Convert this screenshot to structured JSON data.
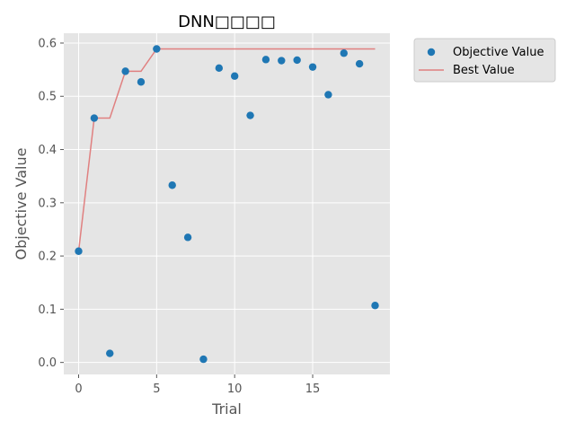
{
  "chart_data": {
    "type": "scatter",
    "title": "DNN□□□□",
    "xlabel": "Trial",
    "ylabel": "Objective Value",
    "xlim": [
      -0.95,
      19.95
    ],
    "ylim": [
      -0.0225,
      0.6185
    ],
    "xticks": [
      0,
      5,
      10,
      15
    ],
    "yticks": [
      0.0,
      0.1,
      0.2,
      0.3,
      0.4,
      0.5,
      0.6
    ],
    "grid": true,
    "legend_placement": "outside-upper-right",
    "series": [
      {
        "name": "Objective Value",
        "kind": "scatter",
        "color": "#1f77b4",
        "x": [
          0,
          1,
          2,
          3,
          4,
          5,
          6,
          7,
          8,
          9,
          10,
          11,
          12,
          13,
          14,
          15,
          16,
          17,
          18,
          19
        ],
        "y": [
          0.209,
          0.459,
          0.017,
          0.547,
          0.527,
          0.589,
          0.333,
          0.235,
          0.006,
          0.553,
          0.538,
          0.464,
          0.569,
          0.567,
          0.568,
          0.555,
          0.503,
          0.581,
          0.561,
          0.107
        ]
      },
      {
        "name": "Best Value",
        "kind": "step-line",
        "color": "#e08080",
        "x": [
          0,
          1,
          2,
          3,
          4,
          5,
          6,
          7,
          8,
          9,
          10,
          11,
          12,
          13,
          14,
          15,
          16,
          17,
          18,
          19
        ],
        "y": [
          0.209,
          0.459,
          0.459,
          0.547,
          0.547,
          0.589,
          0.589,
          0.589,
          0.589,
          0.589,
          0.589,
          0.589,
          0.589,
          0.589,
          0.589,
          0.589,
          0.589,
          0.589,
          0.589,
          0.589
        ]
      }
    ],
    "colors": {
      "plot_background": "#e5e5e5",
      "grid": "#ffffff",
      "legend_background": "#e5e5e5",
      "legend_border": "#cccccc"
    }
  }
}
